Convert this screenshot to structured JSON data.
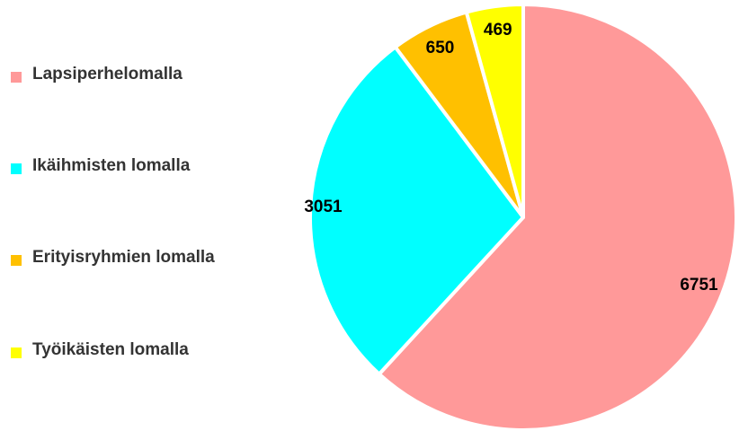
{
  "chart_data": {
    "type": "pie",
    "categories": [
      "Lapsiperhelomalla",
      "Ikäihmisten lomalla",
      "Erityisryhmien lomalla",
      "Työikäisten lomalla"
    ],
    "values": [
      6751,
      3051,
      650,
      469
    ],
    "colors": [
      "#ff9999",
      "#00ffff",
      "#ffc000",
      "#ffff00"
    ],
    "legend": "left"
  }
}
